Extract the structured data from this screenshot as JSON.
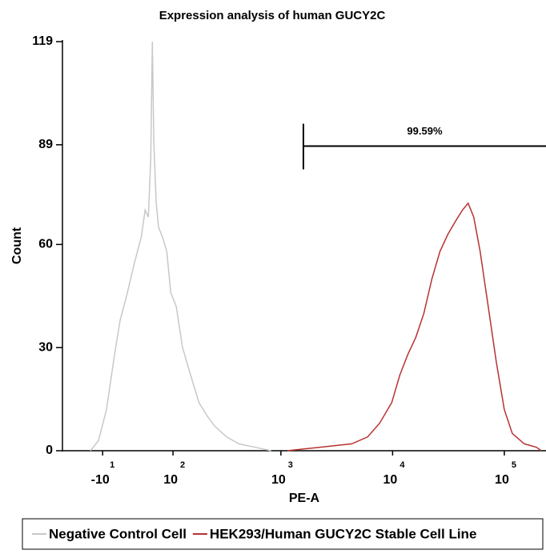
{
  "chart_data": {
    "type": "histogram-overlay",
    "title": "Expression analysis of human GUCY2C",
    "x_label": "PE-A",
    "y_label": "Count",
    "xscale": "biexponential",
    "xlim": [
      -70,
      236000
    ],
    "ylim": [
      0,
      119
    ],
    "xticks": [
      {
        "value": -10,
        "label": "-10",
        "exponent": "1"
      },
      {
        "value": 100,
        "label": "10",
        "exponent": "2"
      },
      {
        "value": 1000,
        "label": "10",
        "exponent": "3"
      },
      {
        "value": 10000,
        "label": "10",
        "exponent": "4"
      },
      {
        "value": 100000,
        "label": "10",
        "exponent": "5"
      }
    ],
    "yticks": [
      0,
      30,
      60,
      89,
      119
    ],
    "series": [
      {
        "name": "Negative Control Cell",
        "color": "#c8c8c8",
        "x": [
          -25.8,
          -15.2,
          -5.2,
          4.8,
          11.8,
          20.0,
          30.9,
          40.2,
          46.3,
          51.3,
          55.3,
          58.0,
          60.6,
          64.9,
          69.3,
          77.3,
          85.8,
          94.7,
          108,
          125,
          150,
          180,
          216,
          255,
          325,
          418,
          587,
          818
        ],
        "values": [
          0,
          3,
          12,
          28,
          38,
          45,
          55,
          62,
          70,
          68,
          85,
          119,
          90,
          72,
          65,
          62,
          58,
          46,
          42,
          30,
          22,
          14,
          10,
          7,
          4,
          2,
          1,
          0
        ]
      },
      {
        "name": "HEK293/Human GUCY2C Stable Cell Line",
        "color": "#b83232",
        "x": [
          1142,
          2214,
          4300,
          5980,
          7660,
          9825,
          11600,
          13680,
          16140,
          19050,
          22500,
          26550,
          31300,
          36960,
          42200,
          47400,
          53200,
          60750,
          71700,
          84600,
          99900,
          117800,
          151000,
          193600,
          213900
        ],
        "values": [
          0,
          1,
          2,
          4,
          8,
          14,
          22,
          28,
          33,
          40,
          50,
          58,
          63,
          67,
          70,
          72,
          68,
          58,
          42,
          26,
          12,
          5,
          2,
          1,
          0
        ]
      }
    ],
    "gate": {
      "label": "99.59%",
      "x_start": 1590,
      "y": 88.6
    }
  }
}
